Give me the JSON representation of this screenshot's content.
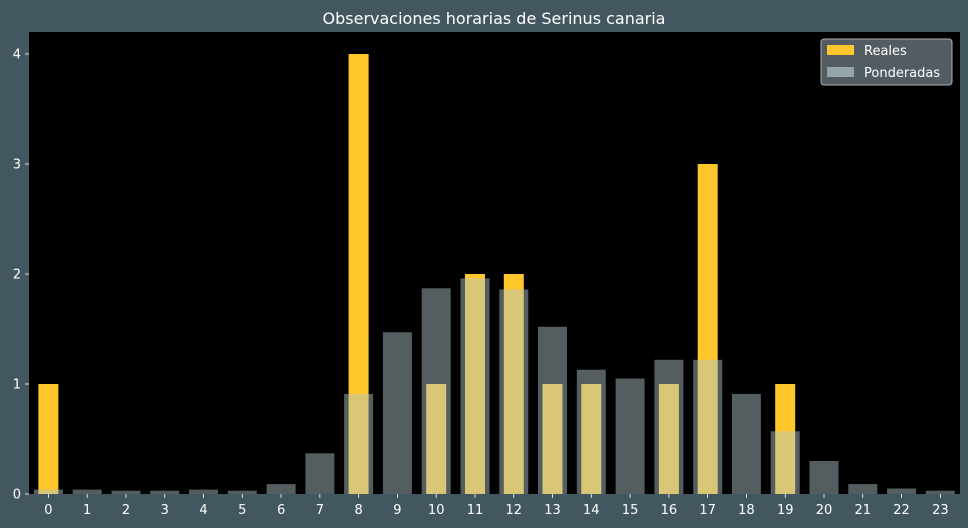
{
  "chart_data": {
    "type": "bar",
    "title": "Observaciones horarias de Serinus canaria",
    "xlabel": "",
    "ylabel": "",
    "categories": [
      "0",
      "1",
      "2",
      "3",
      "4",
      "5",
      "6",
      "7",
      "8",
      "9",
      "10",
      "11",
      "12",
      "13",
      "14",
      "15",
      "16",
      "17",
      "18",
      "19",
      "20",
      "21",
      "22",
      "23"
    ],
    "ylim": [
      0,
      4.2
    ],
    "yticks": [
      0,
      1,
      2,
      3,
      4
    ],
    "grid": false,
    "legend_position": "top-right",
    "series": [
      {
        "name": "Reales",
        "color": "#ffc72c",
        "values": [
          1,
          0,
          0,
          0,
          0,
          0,
          0,
          0,
          4,
          0,
          1,
          2,
          2,
          1,
          1,
          0,
          1,
          3,
          0,
          1,
          0,
          0,
          0,
          0
        ]
      },
      {
        "name": "Ponderadas",
        "color": "#b0c4c8",
        "values": [
          0.04,
          0.04,
          0.03,
          0.03,
          0.04,
          0.03,
          0.09,
          0.37,
          0.91,
          1.47,
          1.87,
          1.96,
          1.86,
          1.52,
          1.13,
          1.05,
          1.22,
          1.22,
          0.91,
          0.57,
          0.3,
          0.09,
          0.05,
          0.03
        ]
      }
    ],
    "colors": {
      "figure_background": "#435761",
      "plot_background": "#000000",
      "text": "#ffffff"
    }
  }
}
